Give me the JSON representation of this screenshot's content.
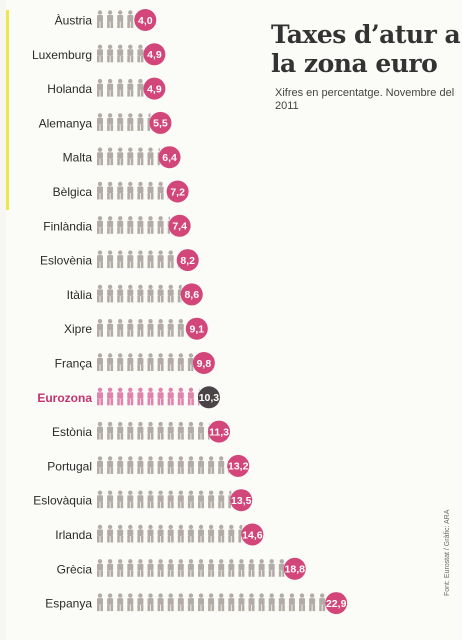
{
  "chart_data": {
    "type": "bar",
    "title": "Taxes d’atur a la zona euro",
    "subtitle": "Xifres en percentatge. Novembre del 2011",
    "source": "Font: Eurostat / Gràfic: ARA",
    "categories": [
      "Àustria",
      "Luxemburg",
      "Holanda",
      "Alemanya",
      "Malta",
      "Bèlgica",
      "Finlàndia",
      "Eslovènia",
      "Itàlia",
      "Xipre",
      "França",
      "Eurozona",
      "Estònia",
      "Portugal",
      "Eslovàquia",
      "Irlanda",
      "Grècia",
      "Espanya"
    ],
    "values": [
      4.0,
      4.9,
      4.9,
      5.5,
      6.4,
      7.2,
      7.4,
      8.2,
      8.6,
      9.1,
      9.8,
      10.3,
      11.3,
      13.2,
      13.5,
      14.6,
      18.8,
      22.9
    ],
    "value_labels": [
      "4,0",
      "4,9",
      "4,9",
      "5,5",
      "6,4",
      "7,2",
      "7,4",
      "8,2",
      "8,6",
      "9,1",
      "9,8",
      "10,3",
      "11,3",
      "13,2",
      "13,5",
      "14,6",
      "18,8",
      "22,9"
    ],
    "highlight": "Eurozona",
    "colors": {
      "figure": "#b3aca6",
      "figure_highlight": "#e084ad",
      "badge": "#d2467a",
      "badge_highlight": "#4a4446",
      "label": "#2a2a2a",
      "label_highlight": "#c5326d"
    }
  }
}
